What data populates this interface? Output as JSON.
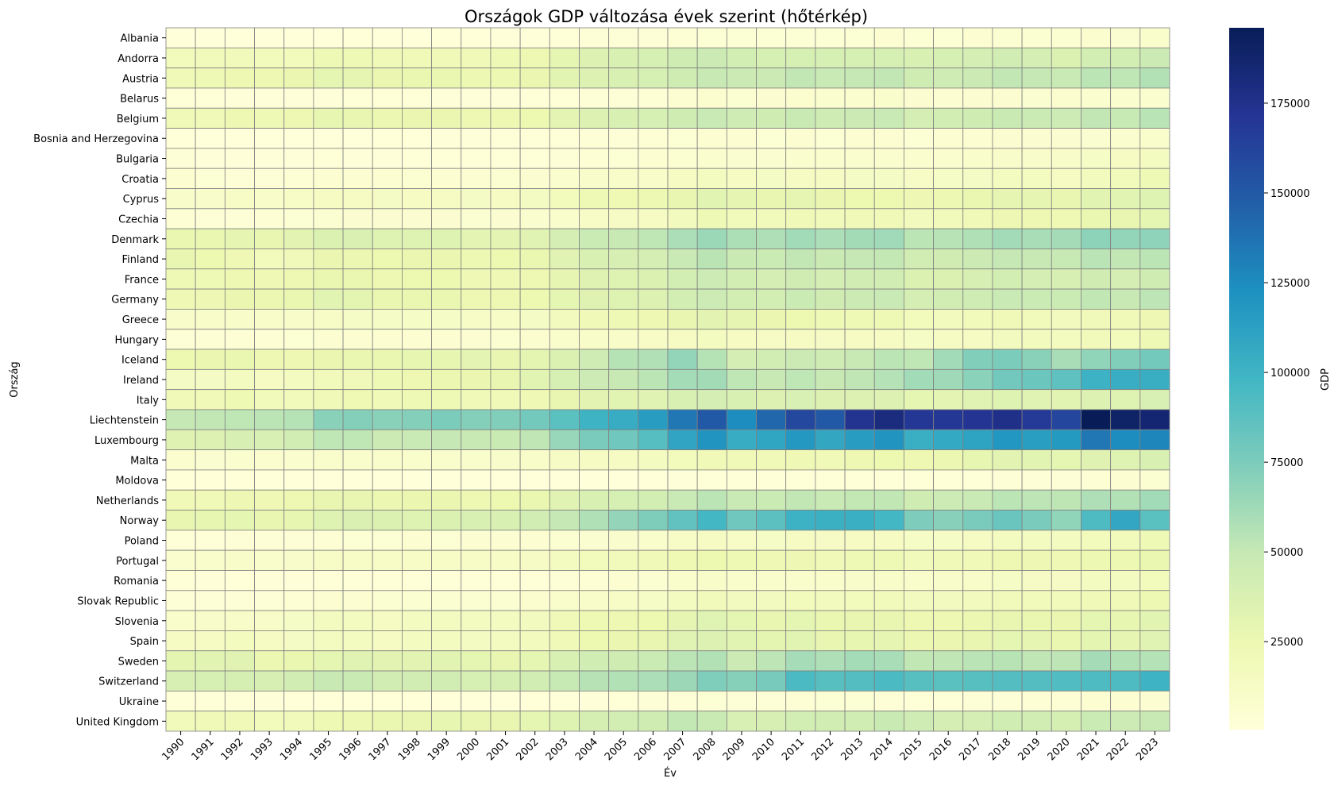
{
  "chart_data": {
    "type": "heatmap",
    "title": "Országok GDP változása évek szerint (hőtérkép)",
    "xlabel": "Év",
    "ylabel": "Ország",
    "colorbar_label": "GDP",
    "colormap": "YlGnBu",
    "value_range": [
      500,
      196000
    ],
    "colorbar_ticks": [
      25000,
      50000,
      75000,
      100000,
      125000,
      150000,
      175000
    ],
    "grid_line_color": "#808080",
    "x": [
      1990,
      1991,
      1992,
      1993,
      1994,
      1995,
      1996,
      1997,
      1998,
      1999,
      2000,
      2001,
      2002,
      2003,
      2004,
      2005,
      2006,
      2007,
      2008,
      2009,
      2010,
      2011,
      2012,
      2013,
      2014,
      2015,
      2016,
      2017,
      2018,
      2019,
      2020,
      2021,
      2022,
      2023
    ],
    "y": [
      "Albania",
      "Andorra",
      "Austria",
      "Belarus",
      "Belgium",
      "Bosnia and Herzegovina",
      "Bulgaria",
      "Croatia",
      "Cyprus",
      "Czechia",
      "Denmark",
      "Finland",
      "France",
      "Germany",
      "Greece",
      "Hungary",
      "Iceland",
      "Ireland",
      "Italy",
      "Liechtenstein",
      "Luxembourg",
      "Malta",
      "Moldova",
      "Netherlands",
      "Norway",
      "Poland",
      "Portugal",
      "Romania",
      "Slovak Republic",
      "Slovenia",
      "Spain",
      "Sweden",
      "Switzerland",
      "Ukraine",
      "United Kingdom"
    ],
    "values": [
      [
        600,
        400,
        200,
        300,
        400,
        700,
        1000,
        700,
        800,
        1100,
        1100,
        1300,
        1400,
        1800,
        2300,
        2700,
        3100,
        3600,
        4400,
        4100,
        4100,
        4400,
        4200,
        4400,
        4600,
        3900,
        4100,
        4500,
        5300,
        5400,
        5300,
        6400,
        6800,
        8300
      ],
      [
        18000,
        19000,
        19500,
        18000,
        18500,
        22000,
        22000,
        21000,
        21500,
        21000,
        21000,
        22000,
        24000,
        30000,
        36000,
        38000,
        40000,
        44000,
        46000,
        42000,
        40000,
        40000,
        40000,
        40000,
        40000,
        38000,
        40000,
        41000,
        43000,
        41000,
        37000,
        42000,
        42000,
        46000
      ],
      [
        21000,
        22000,
        24000,
        24000,
        26000,
        30000,
        29500,
        26500,
        27000,
        27000,
        24500,
        24500,
        26000,
        32000,
        36000,
        38000,
        40000,
        44000,
        49000,
        46000,
        46000,
        51000,
        48000,
        50000,
        51000,
        44000,
        45000,
        47000,
        51000,
        50000,
        48000,
        53000,
        52000,
        56000
      ],
      [
        2000,
        1500,
        1300,
        1400,
        1200,
        1400,
        1500,
        1500,
        1500,
        1200,
        1300,
        1300,
        1500,
        1900,
        2400,
        3100,
        3800,
        4700,
        6400,
        5400,
        6000,
        6500,
        7000,
        7900,
        8300,
        5900,
        5000,
        5800,
        6300,
        6800,
        6500,
        7300,
        7900,
        7300
      ],
      [
        20500,
        21000,
        23500,
        22000,
        24000,
        28500,
        28000,
        25500,
        26000,
        26000,
        23500,
        23500,
        25000,
        31000,
        36000,
        37500,
        39500,
        44000,
        48000,
        45000,
        44000,
        47500,
        45000,
        47000,
        48000,
        41000,
        42000,
        44000,
        47500,
        46600,
        45500,
        51000,
        49500,
        54000
      ],
      [
        1000,
        700,
        500,
        300,
        300,
        400,
        600,
        900,
        1100,
        1200,
        1400,
        1500,
        1700,
        2100,
        2500,
        2800,
        3300,
        3900,
        4800,
        4500,
        4300,
        4600,
        4400,
        4600,
        4800,
        4300,
        4600,
        5000,
        5900,
        5900,
        5900,
        6800,
        7600,
        8200
      ],
      [
        2400,
        1200,
        1300,
        1300,
        1200,
        1600,
        1200,
        1300,
        1700,
        1700,
        1600,
        1800,
        2100,
        2700,
        3300,
        3900,
        4500,
        5600,
        7200,
        6900,
        6800,
        7700,
        7300,
        7600,
        7900,
        7000,
        7500,
        8400,
        9400,
        9800,
        10100,
        12200,
        13900,
        15800
      ],
      [
        5100,
        4000,
        3100,
        3000,
        3800,
        4700,
        5000,
        5200,
        5400,
        5000,
        4900,
        5300,
        6000,
        7800,
        9400,
        10200,
        11000,
        13100,
        15500,
        14200,
        13500,
        14500,
        13200,
        13600,
        13500,
        11800,
        12500,
        13600,
        15200,
        15300,
        14200,
        17700,
        18900,
        21900
      ],
      [
        9600,
        9700,
        11200,
        10600,
        11600,
        14300,
        14100,
        13500,
        14000,
        14100,
        13400,
        13700,
        14800,
        18400,
        21700,
        22900,
        24400,
        28300,
        32200,
        29600,
        27900,
        29300,
        26400,
        25200,
        24700,
        23400,
        24600,
        26600,
        29300,
        29100,
        28100,
        32200,
        32000,
        34800
      ],
      [
        3700,
        2800,
        3200,
        3700,
        4300,
        5700,
        6300,
        5800,
        6100,
        6000,
        5700,
        6200,
        7400,
        9300,
        11200,
        12800,
        14500,
        17500,
        21700,
        19700,
        19300,
        21500,
        19700,
        19900,
        19900,
        17800,
        18600,
        20600,
        23200,
        23600,
        22900,
        26800,
        27600,
        30400
      ],
      [
        26900,
        27000,
        29600,
        28100,
        31500,
        36700,
        37200,
        34300,
        34500,
        34300,
        30800,
        30800,
        33200,
        40500,
        46500,
        48800,
        52100,
        58500,
        64300,
        58200,
        58000,
        61800,
        58500,
        61200,
        62500,
        53300,
        54700,
        57600,
        61600,
        59800,
        60900,
        69000,
        67000,
        68800
      ],
      [
        28400,
        25200,
        22200,
        18000,
        20300,
        26300,
        25900,
        25100,
        26000,
        26000,
        24300,
        24900,
        27000,
        33000,
        37600,
        39000,
        41200,
        48100,
        53400,
        47300,
        46500,
        51100,
        47700,
        49900,
        50300,
        42800,
        43800,
        46400,
        50000,
        48700,
        49200,
        53700,
        50700,
        53000
      ],
      [
        21800,
        21700,
        23900,
        22500,
        23600,
        26900,
        26900,
        24200,
        24900,
        24700,
        22400,
        22400,
        24200,
        29700,
        33900,
        34800,
        36500,
        41600,
        45400,
        41600,
        40600,
        43800,
        40900,
        42600,
        43000,
        36700,
        37000,
        38800,
        41600,
        40600,
        39200,
        43700,
        41000,
        44500
      ],
      [
        22300,
        23400,
        26400,
        25500,
        27100,
        31700,
        30500,
        27000,
        27300,
        26800,
        23700,
        23600,
        25200,
        30300,
        34100,
        34500,
        35900,
        41600,
        45600,
        41700,
        41500,
        46600,
        43900,
        46300,
        48000,
        41100,
        42100,
        44700,
        47900,
        46800,
        46800,
        51400,
        48700,
        52700
      ],
      [
        9500,
        10200,
        11100,
        10300,
        10600,
        12000,
        12700,
        12300,
        12200,
        12400,
        11500,
        11900,
        13400,
        17500,
        20600,
        21600,
        23600,
        27400,
        31100,
        29100,
        26100,
        25100,
        21900,
        21800,
        21800,
        18100,
        17900,
        18600,
        19800,
        19200,
        17600,
        20200,
        20900,
        23400
      ],
      [
        3200,
        3300,
        3700,
        3800,
        4100,
        4500,
        4500,
        4600,
        4800,
        4900,
        4600,
        5300,
        6600,
        8400,
        10300,
        11000,
        11400,
        13900,
        15700,
        13100,
        13000,
        14200,
        12900,
        13700,
        14300,
        12700,
        13100,
        14600,
        16400,
        16800,
        16100,
        18800,
        18500,
        22100
      ],
      [
        25000,
        26500,
        27000,
        23500,
        24000,
        26500,
        27000,
        27000,
        28500,
        29000,
        31000,
        28000,
        30500,
        37000,
        45000,
        55000,
        57000,
        67000,
        55000,
        41000,
        43000,
        47000,
        45000,
        49000,
        53000,
        52000,
        62000,
        73000,
        75000,
        70000,
        60000,
        68000,
        73000,
        78000
      ],
      [
        13600,
        13600,
        15300,
        14000,
        15200,
        18700,
        20300,
        21700,
        23500,
        25600,
        26300,
        28300,
        32100,
        39900,
        45600,
        49000,
        53100,
        61100,
        61200,
        52200,
        48700,
        52200,
        48900,
        51600,
        55600,
        62000,
        63000,
        69800,
        79000,
        81600,
        86300,
        101000,
        104000,
        103700
      ],
      [
        20800,
        21100,
        23000,
        18700,
        19300,
        20700,
        22900,
        21500,
        22000,
        21700,
        20100,
        20500,
        22300,
        27500,
        31300,
        32000,
        33500,
        37800,
        41000,
        37600,
        36000,
        38600,
        35100,
        35600,
        35600,
        30200,
        30900,
        32400,
        34600,
        33600,
        31900,
        36000,
        34800,
        38300
      ],
      [
        50000,
        51000,
        52000,
        53000,
        55000,
        70000,
        72000,
        70000,
        72000,
        75000,
        72000,
        73000,
        78000,
        88000,
        100000,
        105000,
        115000,
        135000,
        150000,
        125000,
        143000,
        160000,
        150000,
        173000,
        180000,
        170000,
        170000,
        172000,
        176000,
        168000,
        161000,
        196000,
        190000,
        186000
      ],
      [
        34000,
        35600,
        38900,
        38400,
        42700,
        52200,
        52000,
        47000,
        47900,
        50000,
        48700,
        47300,
        51900,
        65400,
        75800,
        79900,
        90000,
        110000,
        120000,
        105000,
        109000,
        118000,
        108000,
        115000,
        120000,
        103000,
        107000,
        111000,
        119000,
        114000,
        117000,
        135000,
        125000,
        128000
      ],
      [
        6500,
        6700,
        7400,
        6600,
        7000,
        8300,
        8600,
        8300,
        8900,
        9200,
        9200,
        9500,
        10600,
        12900,
        14300,
        14700,
        15500,
        18200,
        21000,
        19800,
        20100,
        22200,
        21500,
        23700,
        25100,
        24000,
        25700,
        28600,
        31200,
        31800,
        30100,
        34100,
        34300,
        38000
      ],
      [
        1000,
        900,
        900,
        800,
        700,
        600,
        500,
        500,
        500,
        400,
        400,
        400,
        500,
        600,
        700,
        800,
        1000,
        1300,
        1700,
        1500,
        1600,
        1900,
        2000,
        2200,
        2200,
        1800,
        1900,
        2200,
        2700,
        2900,
        2900,
        3600,
        4500,
        5500
      ],
      [
        21300,
        21300,
        23300,
        22600,
        23900,
        28000,
        27900,
        25400,
        26300,
        26200,
        24200,
        24800,
        27000,
        33300,
        38000,
        39500,
        41800,
        48200,
        53100,
        48000,
        46700,
        51000,
        47900,
        50600,
        51400,
        44300,
        45500,
        48100,
        53000,
        52500,
        52300,
        57800,
        56300,
        62000
      ],
      [
        28100,
        28700,
        30300,
        27600,
        28800,
        34800,
        37200,
        36600,
        34500,
        36300,
        38100,
        37900,
        43000,
        50000,
        57600,
        66800,
        74100,
        85100,
        96900,
        80000,
        87700,
        101000,
        102000,
        102900,
        97000,
        74400,
        70900,
        75500,
        82300,
        75800,
        68000,
        93100,
        108700,
        87900
      ],
      [
        1700,
        2200,
        2400,
        2400,
        2800,
        3600,
        4100,
        4100,
        4500,
        4300,
        4500,
        4900,
        5200,
        5700,
        6700,
        8000,
        9000,
        11200,
        14000,
        11500,
        12600,
        13800,
        13000,
        13800,
        14200,
        12600,
        12400,
        13800,
        15500,
        15700,
        15800,
        18100,
        18700,
        22100
      ],
      [
        7900,
        8300,
        10100,
        9200,
        9900,
        11800,
        11900,
        11300,
        11800,
        11700,
        11500,
        11800,
        12900,
        15800,
        18100,
        18800,
        19800,
        22800,
        24900,
        23100,
        22500,
        23200,
        21000,
        21600,
        22100,
        19300,
        19900,
        21500,
        23500,
        23300,
        22200,
        24600,
        24500,
        27300
      ],
      [
        1700,
        1300,
        1100,
        1200,
        1300,
        1600,
        1600,
        1600,
        1900,
        1600,
        1700,
        1800,
        2100,
        2700,
        3500,
        4600,
        5700,
        8300,
        10400,
        8500,
        8300,
        9200,
        8600,
        9600,
        10000,
        8900,
        9500,
        10800,
        12400,
        12900,
        13000,
        15000,
        15800,
        18400
      ],
      [
        2300,
        2500,
        2800,
        3100,
        3600,
        4900,
        5200,
        5300,
        5700,
        5400,
        5400,
        5700,
        6600,
        8600,
        10500,
        11400,
        12700,
        16000,
        18800,
        16400,
        16600,
        18200,
        17400,
        18300,
        18600,
        16400,
        16500,
        17600,
        19500,
        19400,
        19500,
        21400,
        21200,
        24500
      ],
      [
        9200,
        9400,
        10700,
        11000,
        12200,
        15000,
        15300,
        14600,
        15200,
        15700,
        15000,
        15000,
        16400,
        20400,
        23000,
        23900,
        25200,
        29700,
        33800,
        30000,
        28000,
        30000,
        27000,
        27700,
        28000,
        23500,
        24200,
        25900,
        28200,
        27200,
        26000,
        29800,
        28500,
        32200
      ],
      [
        13800,
        14700,
        16100,
        13300,
        13500,
        15500,
        16000,
        14700,
        15400,
        15700,
        14800,
        15100,
        16900,
        21500,
        24900,
        26400,
        28400,
        32700,
        35500,
        32200,
        30600,
        31700,
        28300,
        29000,
        29500,
        25700,
        26500,
        28200,
        30400,
        29600,
        27100,
        30500,
        29400,
        33500
      ],
      [
        30600,
        31900,
        32600,
        25600,
        26800,
        30300,
        32800,
        31200,
        31400,
        32100,
        30300,
        27800,
        30400,
        37900,
        43300,
        44000,
        46600,
        53300,
        56100,
        47000,
        52900,
        60700,
        58000,
        61100,
        60000,
        51500,
        51800,
        53800,
        54600,
        51900,
        52800,
        61000,
        56400,
        55500
      ],
      [
        39000,
        39500,
        40400,
        39100,
        42100,
        48900,
        47500,
        42300,
        43000,
        42600,
        40000,
        40400,
        42900,
        49300,
        55300,
        56600,
        58400,
        64000,
        73900,
        71600,
        76500,
        94200,
        89000,
        91300,
        94000,
        89000,
        88000,
        89000,
        91000,
        91000,
        92000,
        93000,
        93000,
        100000
      ],
      [
        1600,
        1500,
        1500,
        1300,
        1100,
        900,
        900,
        1000,
        900,
        600,
        700,
        800,
        900,
        1100,
        1400,
        1800,
        2300,
        3100,
        4000,
        2500,
        2900,
        3500,
        3900,
        4200,
        3100,
        2100,
        2200,
        2600,
        3100,
        3700,
        3800,
        4800,
        4500,
        5200
      ],
      [
        19100,
        19900,
        20500,
        18400,
        19700,
        23100,
        24300,
        26700,
        28300,
        28700,
        28200,
        27800,
        30100,
        34400,
        40300,
        41900,
        44200,
        50400,
        47300,
        38700,
        39400,
        42000,
        42500,
        43400,
        47400,
        45000,
        41100,
        40600,
        43300,
        42700,
        40200,
        46900,
        45600,
        48900
      ]
    ]
  }
}
